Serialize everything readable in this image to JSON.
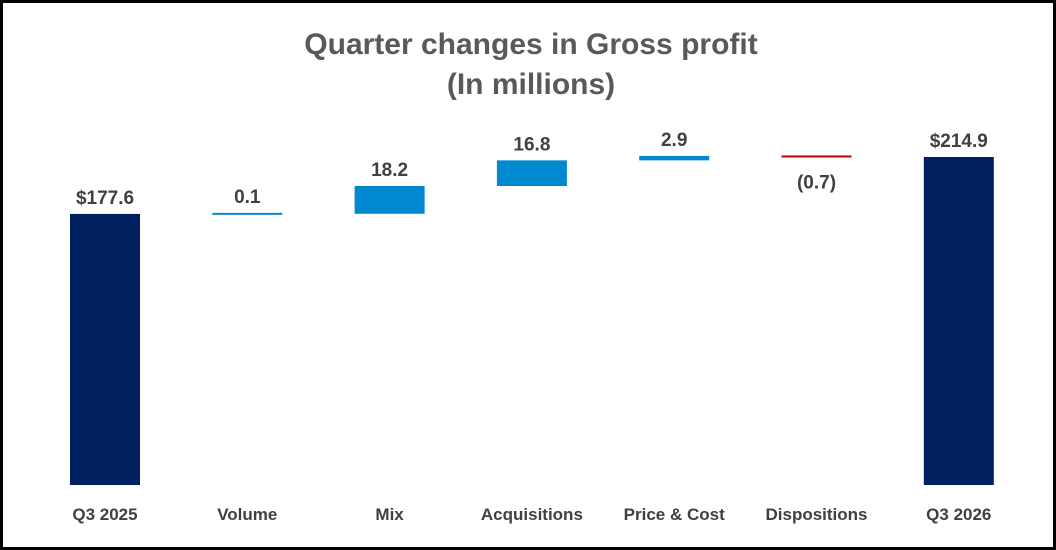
{
  "chart_data": {
    "type": "bar",
    "subtype": "waterfall",
    "title": "Quarter changes in Gross profit",
    "subtitle": "(In millions)",
    "categories": [
      "Q3 2025",
      "Volume",
      "Mix",
      "Acquisitions",
      "Price & Cost",
      "Dispositions",
      "Q3 2026"
    ],
    "values": [
      177.6,
      0.1,
      18.2,
      16.8,
      2.9,
      -0.7,
      214.9
    ],
    "labels": [
      "$177.6",
      "0.1",
      "18.2",
      "16.8",
      "2.9",
      "(0.7)",
      "$214.9"
    ],
    "kinds": [
      "total",
      "increase",
      "increase",
      "increase",
      "increase",
      "decrease",
      "total"
    ],
    "ylim": [
      0,
      214.9
    ],
    "grid": false,
    "legend": "none",
    "colors": {
      "total": "#002060",
      "increase": "#0089D1",
      "decrease": "#C00000",
      "title": "#595959",
      "label": "#404040"
    }
  }
}
